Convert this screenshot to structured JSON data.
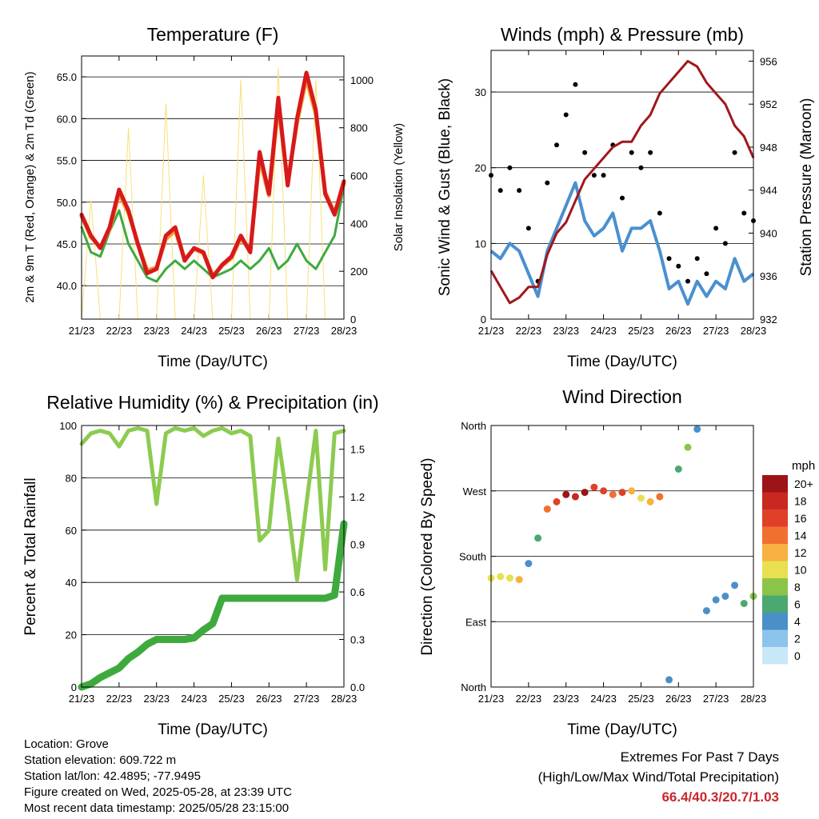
{
  "charts": {
    "temperature": {
      "title": "Temperature (F)",
      "ylabel_left": "2m & 9m T (Red, Orange) & 2m Td (Green)",
      "ylabel_right": "Solar Insolation (Yellow)",
      "xlabel": "Time (Day/UTC)",
      "xticks": [
        "21/23",
        "22/23",
        "23/23",
        "24/23",
        "25/23",
        "26/23",
        "27/23",
        "28/23"
      ],
      "yticks_left": [
        "40.0",
        "45.0",
        "50.0",
        "55.0",
        "60.0",
        "65.0"
      ],
      "yticks_right": [
        "0",
        "200",
        "400",
        "600",
        "800",
        "1000"
      ]
    },
    "winds": {
      "title": "Winds (mph) & Pressure (mb)",
      "ylabel_left": "Sonic Wind & Gust (Blue, Black)",
      "ylabel_right": "Station Pressure (Maroon)",
      "xlabel": "Time (Day/UTC)",
      "xticks": [
        "21/23",
        "22/23",
        "23/23",
        "24/23",
        "25/23",
        "26/23",
        "27/23",
        "28/23"
      ],
      "yticks_left": [
        "0",
        "10",
        "20",
        "30"
      ],
      "yticks_right": [
        "932",
        "936",
        "940",
        "944",
        "948",
        "952",
        "956"
      ]
    },
    "humidity": {
      "title": "Relative Humidity (%) & Precipitation (in)",
      "ylabel_left": "Percent & Total Rainfall",
      "xlabel": "Time (Day/UTC)",
      "xticks": [
        "21/23",
        "22/23",
        "23/23",
        "24/23",
        "25/23",
        "26/23",
        "27/23",
        "28/23"
      ],
      "yticks_left": [
        "0",
        "20",
        "40",
        "60",
        "80",
        "100"
      ],
      "yticks_right": [
        "0.0",
        "0.3",
        "0.6",
        "0.9",
        "1.2",
        "1.5"
      ]
    },
    "direction": {
      "title": "Wind Direction",
      "ylabel_left": "Direction (Colored By Speed)",
      "xlabel": "Time (Day/UTC)",
      "xticks": [
        "21/23",
        "22/23",
        "23/23",
        "24/23",
        "25/23",
        "26/23",
        "27/23",
        "28/23"
      ],
      "yticks_left": [
        "North",
        "East",
        "South",
        "West",
        "North"
      ],
      "colorbar_title": "mph",
      "colorbar_labels": [
        "0",
        "2",
        "4",
        "6",
        "8",
        "10",
        "12",
        "14",
        "16",
        "18",
        "20+"
      ]
    }
  },
  "chart_data": [
    {
      "type": "line",
      "title": "Temperature (F)",
      "xlabel": "Time (Day/UTC)",
      "ylabel": "2m & 9m T (Red, Orange) & 2m Td (Green)",
      "ylabel_right": "Solar Insolation (Yellow)",
      "x_days": [
        0,
        0.25,
        0.5,
        0.75,
        1,
        1.25,
        1.5,
        1.75,
        2,
        2.25,
        2.5,
        2.75,
        3,
        3.25,
        3.5,
        3.75,
        4,
        4.25,
        4.5,
        4.75,
        5,
        5.25,
        5.5,
        5.75,
        6,
        6.25,
        6.5,
        6.75,
        7
      ],
      "xlim": [
        0,
        7
      ],
      "ylim": [
        36,
        67.5
      ],
      "ylim_right": [
        0,
        1100
      ],
      "series": [
        {
          "name": "2m T",
          "color": "#d7191c",
          "values": [
            48.5,
            46,
            44.5,
            47,
            51.5,
            49,
            45,
            41.5,
            42,
            46,
            47,
            43,
            44.5,
            44,
            41,
            42.5,
            43.5,
            46,
            44,
            56,
            51,
            62.5,
            52,
            60,
            65.5,
            61,
            51,
            48.5,
            52.5
          ]
        },
        {
          "name": "9m T",
          "color": "#f4a030",
          "values": [
            48.3,
            45.8,
            44.6,
            46.8,
            51,
            48.7,
            45.1,
            41.8,
            42.2,
            45.6,
            46.6,
            43.2,
            44.4,
            43.9,
            41.2,
            42.4,
            43.3,
            45.7,
            44.2,
            55.2,
            50.8,
            61.5,
            52.5,
            59.5,
            64.8,
            60.5,
            51.2,
            48.7,
            52.2
          ]
        },
        {
          "name": "2m Td",
          "color": "#3eaa3e",
          "values": [
            47,
            44,
            43.5,
            46.5,
            49,
            45,
            43,
            41,
            40.5,
            42,
            43,
            42,
            43,
            42,
            41,
            41.5,
            42,
            43,
            42,
            43,
            44.5,
            42,
            43,
            45,
            43,
            42,
            44,
            46,
            52
          ]
        },
        {
          "name": "Solar Insolation",
          "color": "#f7e07a",
          "axis": "right",
          "values": [
            0,
            500,
            0,
            0,
            0,
            800,
            0,
            0,
            0,
            900,
            0,
            0,
            0,
            600,
            0,
            0,
            0,
            1000,
            0,
            0,
            0,
            1050,
            0,
            0,
            0,
            1000,
            0,
            0,
            0
          ]
        }
      ]
    },
    {
      "type": "scatter",
      "title": "Winds (mph) & Pressure (mb)",
      "xlabel": "Time (Day/UTC)",
      "ylabel": "Sonic Wind & Gust (Blue, Black)",
      "ylabel_right": "Station Pressure (Maroon)",
      "x_days": [
        0,
        0.25,
        0.5,
        0.75,
        1,
        1.25,
        1.5,
        1.75,
        2,
        2.25,
        2.5,
        2.75,
        3,
        3.25,
        3.5,
        3.75,
        4,
        4.25,
        4.5,
        4.75,
        5,
        5.25,
        5.5,
        5.75,
        6,
        6.25,
        6.5,
        6.75,
        7
      ],
      "xlim": [
        0,
        7
      ],
      "ylim": [
        0,
        35.5
      ],
      "ylim_right": [
        932,
        957
      ],
      "series": [
        {
          "name": "Sonic Wind",
          "color": "#4a90cf",
          "values": [
            9,
            8,
            10,
            9,
            6,
            3,
            9,
            12,
            15,
            18,
            13,
            11,
            12,
            14,
            9,
            12,
            12,
            13,
            9,
            4,
            5,
            2,
            5,
            3,
            5,
            4,
            8,
            5,
            6
          ]
        },
        {
          "name": "Gust",
          "color": "#000000",
          "values": [
            19,
            17,
            20,
            17,
            12,
            5,
            18,
            23,
            27,
            31,
            22,
            19,
            19,
            23,
            16,
            22,
            20,
            22,
            14,
            8,
            7,
            5,
            8,
            6,
            12,
            10,
            22,
            14,
            13
          ]
        },
        {
          "name": "Station Pressure",
          "color": "#a0181c",
          "axis": "right",
          "values": [
            936.5,
            935,
            933.5,
            934,
            935,
            935,
            938,
            940,
            941,
            943,
            945,
            946,
            947,
            948,
            948.5,
            948.5,
            950,
            951,
            953,
            954,
            955,
            956,
            955.5,
            954,
            953,
            952,
            950,
            949,
            947
          ]
        }
      ]
    },
    {
      "type": "line",
      "title": "Relative Humidity (%) & Precipitation (in)",
      "xlabel": "Time (Day/UTC)",
      "ylabel": "Percent & Total Rainfall",
      "x_days": [
        0,
        0.25,
        0.5,
        0.75,
        1,
        1.25,
        1.5,
        1.75,
        2,
        2.25,
        2.5,
        2.75,
        3,
        3.25,
        3.5,
        3.75,
        4,
        4.25,
        4.5,
        4.75,
        5,
        5.25,
        5.5,
        5.75,
        6,
        6.25,
        6.5,
        6.75,
        7
      ],
      "xlim": [
        0,
        7
      ],
      "ylim": [
        0,
        100
      ],
      "ylim_right": [
        0,
        1.65
      ],
      "series": [
        {
          "name": "Relative Humidity",
          "color": "#8ccb50",
          "values": [
            93,
            97,
            98,
            97,
            92,
            98,
            99,
            98,
            70,
            97,
            99,
            98,
            99,
            96,
            98,
            99,
            97,
            98,
            96,
            56,
            60,
            95,
            70,
            41,
            70,
            98,
            45,
            97,
            98
          ]
        },
        {
          "name": "Total Precipitation",
          "color": "#3eaa3e",
          "axis": "right",
          "values": [
            0,
            0.02,
            0.06,
            0.09,
            0.12,
            0.18,
            0.22,
            0.27,
            0.3,
            0.3,
            0.3,
            0.3,
            0.31,
            0.36,
            0.4,
            0.56,
            0.56,
            0.56,
            0.56,
            0.56,
            0.56,
            0.56,
            0.56,
            0.56,
            0.56,
            0.56,
            0.56,
            0.58,
            1.03
          ]
        }
      ]
    },
    {
      "type": "scatter",
      "title": "Wind Direction",
      "xlabel": "Time (Day/UTC)",
      "ylabel": "Direction (Colored By Speed)",
      "x_days": [
        0,
        0.25,
        0.5,
        0.75,
        1,
        1.25,
        1.5,
        1.75,
        2,
        2.25,
        2.5,
        2.75,
        3,
        3.25,
        3.5,
        3.75,
        4,
        4.25,
        4.5,
        4.75,
        5,
        5.25,
        5.5,
        5.75,
        6,
        6.25,
        6.5,
        6.75,
        7
      ],
      "xlim": [
        0,
        7
      ],
      "y_label_scale": [
        "North",
        "East",
        "South",
        "West",
        "North"
      ],
      "ylim_deg": [
        0,
        360
      ],
      "series": [
        {
          "name": "Direction",
          "degrees": [
            150,
            152,
            150,
            148,
            170,
            205,
            245,
            255,
            265,
            262,
            268,
            275,
            270,
            265,
            268,
            270,
            260,
            255,
            262,
            10,
            300,
            330,
            355,
            105,
            120,
            125,
            140,
            115,
            125
          ],
          "speed_mph": [
            9,
            10,
            10,
            11,
            4,
            6,
            14,
            16,
            20,
            18,
            19,
            16,
            15,
            14,
            16,
            12,
            10,
            12,
            14,
            3,
            5,
            8,
            3,
            4,
            4,
            3,
            4,
            5,
            8
          ]
        }
      ],
      "colorbar": {
        "title": "mph",
        "labels": [
          "0",
          "2",
          "4",
          "6",
          "8",
          "10",
          "12",
          "14",
          "16",
          "18",
          "20+"
        ],
        "colors": [
          "#c8e8f8",
          "#8cc4ec",
          "#4b8fc8",
          "#4ba870",
          "#8cc44a",
          "#e8e050",
          "#f8b040",
          "#f07030",
          "#e04028",
          "#c82820",
          "#9c1418"
        ]
      }
    }
  ],
  "footer": {
    "location": "Location: Grove",
    "elevation": "Station elevation: 609.722 m",
    "latlon": "Station lat/lon: 42.4895; -77.9495",
    "created": "Figure created on Wed, 2025-05-28, at 23:39 UTC",
    "timestamp": "Most recent data timestamp: 2025/05/28 23:15:00"
  },
  "extremes": {
    "title": "Extremes For Past 7 Days",
    "subtitle": "(High/Low/Max Wind/Total Precipitation)",
    "values": "66.4/40.3/20.7/1.03"
  }
}
